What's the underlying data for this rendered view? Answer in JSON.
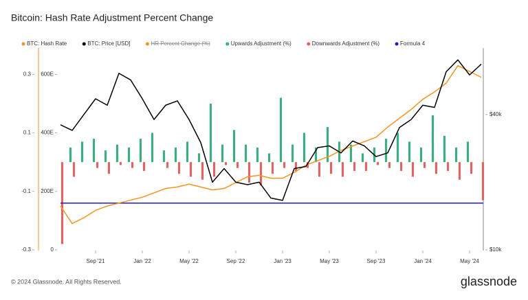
{
  "chart_data": {
    "type": "combo",
    "title": "Bitcoin: Hash Rate Adjustment Percent Change",
    "footer": "© 2024 Glassnode. All Rights Reserved.",
    "brand": "glassnode",
    "x": [
      "2021-06",
      "2021-07",
      "2021-08",
      "2021-09",
      "2021-10",
      "2021-11",
      "2021-12",
      "2022-01",
      "2022-02",
      "2022-03",
      "2022-04",
      "2022-05",
      "2022-06",
      "2022-07",
      "2022-08",
      "2022-09",
      "2022-10",
      "2022-11",
      "2022-12",
      "2023-01",
      "2023-02",
      "2023-03",
      "2023-04",
      "2023-05",
      "2023-06",
      "2023-07",
      "2023-08",
      "2023-09",
      "2023-10",
      "2023-11",
      "2023-12",
      "2024-01",
      "2024-02",
      "2024-03",
      "2024-04",
      "2024-05",
      "2024-06"
    ],
    "xticks": [
      {
        "value": "2021-09",
        "label": "Sep '21"
      },
      {
        "value": "2022-01",
        "label": "Jan '22"
      },
      {
        "value": "2022-05",
        "label": "May '22"
      },
      {
        "value": "2022-09",
        "label": "Sep '22"
      },
      {
        "value": "2023-01",
        "label": "Jan '23"
      },
      {
        "value": "2023-05",
        "label": "May '23"
      },
      {
        "value": "2023-09",
        "label": "Sep '23"
      },
      {
        "value": "2024-01",
        "label": "Jan '24"
      },
      {
        "value": "2024-05",
        "label": "May '24"
      }
    ],
    "ylim": [
      -0.3,
      0.39
    ],
    "yticks": [
      -0.3,
      -0.1,
      0.1,
      0.3
    ],
    "y2lim": [
      0,
      690
    ],
    "y2ticks": [
      0,
      {
        "value": 200,
        "label": "200E"
      },
      {
        "value": 400,
        "label": "400E"
      },
      {
        "value": 600,
        "label": "600E"
      }
    ],
    "y3lim": [
      10000,
      79000
    ],
    "y3log": true,
    "y3ticks": [
      {
        "value": 10000,
        "label": "$10k"
      },
      {
        "value": 40000,
        "label": "$40k"
      }
    ],
    "series": [
      {
        "name": "BTC: Hash Rate",
        "type": "line",
        "axis": "y2",
        "color": "#f7931a",
        "values": [
          150,
          90,
          110,
          135,
          150,
          160,
          170,
          180,
          195,
          210,
          215,
          225,
          215,
          205,
          210,
          230,
          250,
          255,
          245,
          245,
          265,
          290,
          305,
          320,
          340,
          355,
          370,
          385,
          420,
          450,
          480,
          515,
          540,
          570,
          630,
          610,
          590
        ]
      },
      {
        "name": "BTC: Price [USD]",
        "type": "line",
        "axis": "y3",
        "color": "#000000",
        "values": [
          36000,
          34000,
          40000,
          47000,
          44000,
          61000,
          57000,
          47000,
          38000,
          44000,
          46000,
          38000,
          30000,
          20000,
          23000,
          20000,
          19500,
          20000,
          17000,
          16600,
          23000,
          23500,
          28500,
          29000,
          27000,
          30500,
          29000,
          26000,
          27000,
          35000,
          38000,
          44000,
          43000,
          62000,
          70000,
          60000,
          67000
        ]
      },
      {
        "name": "HR Percent Change (%)",
        "type": "hidden",
        "color": "#f7931a"
      },
      {
        "name": "Upwards Adjustment (%)",
        "type": "bar",
        "color": "#2fb67c",
        "values": [
          null,
          0.05,
          0.07,
          0.08,
          0.04,
          0.06,
          0.05,
          0.08,
          0.1,
          0.04,
          0.05,
          0.07,
          0.03,
          0.2,
          0.06,
          0.11,
          0.06,
          0.05,
          0.03,
          0.22,
          0.06,
          0.1,
          0.05,
          0.12,
          0.07,
          0.06,
          0.03,
          0.05,
          0.08,
          0.1,
          0.07,
          0.05,
          0.16,
          0.09,
          0.05,
          0.07,
          null
        ]
      },
      {
        "name": "Downwards Adjustment (%)",
        "type": "bar",
        "color": "#f25c5c",
        "values": [
          -0.28,
          -0.05,
          null,
          -0.02,
          -0.04,
          -0.01,
          -0.02,
          -0.03,
          null,
          -0.02,
          -0.04,
          -0.05,
          -0.06,
          -0.05,
          -0.01,
          -0.02,
          -0.07,
          -0.08,
          -0.04,
          -0.02,
          -0.03,
          -0.02,
          -0.05,
          -0.04,
          -0.05,
          -0.03,
          -0.03,
          -0.01,
          -0.02,
          -0.03,
          -0.05,
          -0.02,
          -0.04,
          -0.03,
          -0.06,
          -0.04,
          -0.13
        ]
      },
      {
        "name": "Formula 4",
        "type": "hline",
        "color": "#1a1ad4",
        "value": -0.14
      }
    ]
  }
}
